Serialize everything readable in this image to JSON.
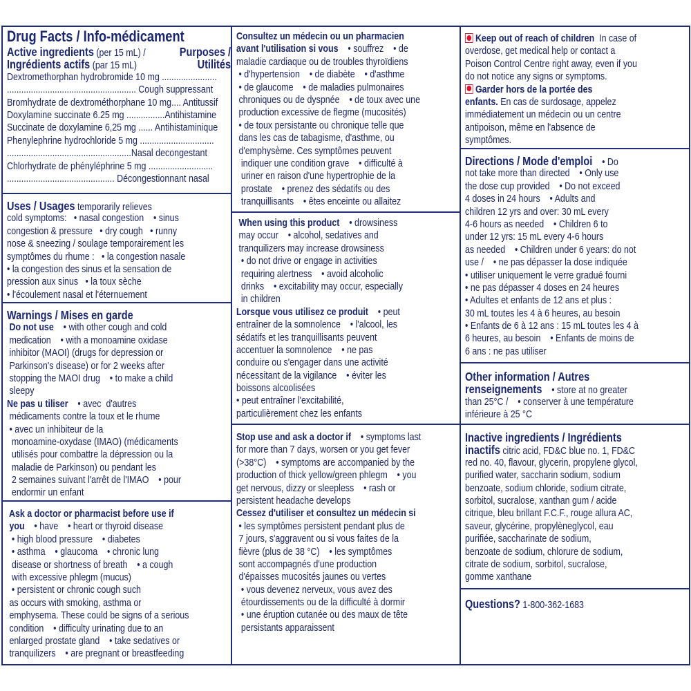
{
  "colors": {
    "text": "#1b2466",
    "border": "#1f2d78",
    "warning_icon": "#d4203a"
  },
  "sections": [
    {
      "id": "facts",
      "lines": [
        {
          "cls": "title",
          "l": [
            {
              "t": "Drug Facts / Info-médicament"
            }
          ]
        },
        {
          "l": [
            {
              "h": "Active ingredients"
            },
            " (per 15 mL) /"
          ],
          "r": [
            {
              "h": "Purposes /"
            }
          ]
        },
        {
          "l": [
            {
              "h": "Ingrédients actifs"
            },
            " (par 15 mL)"
          ],
          "r": [
            {
              "h": "Utilités"
            }
          ]
        },
        {
          "l": [
            "Dextromethorphan hydrobromide 10 mg ......................."
          ]
        },
        {
          "l": [
            "...................................................... Cough suppressant"
          ]
        },
        {
          "l": [
            "Bromhydrate de dextrométhorphane 10 mg.... Antitussif"
          ]
        },
        {
          "l": [
            "Doxylamine succinate 6.25 mg ................Antihistamine"
          ]
        },
        {
          "l": [
            "Succinate de doxylamine 6,25 mg ...... Antihistaminique"
          ]
        },
        {
          "l": [
            "Phenylephrine hydrochloride 5 mg ..............................."
          ]
        },
        {
          "l": [
            "....................................................Nasal decongestant"
          ]
        },
        {
          "l": [
            "Chlorhydrate de phényléphrine 5 mg ..........................."
          ]
        },
        {
          "l": [
            "............................................. Décongestionnant nasal"
          ]
        }
      ]
    },
    {
      "id": "uses",
      "lines": [
        {
          "l": [
            {
              "h": "Uses / Usages"
            },
            " temporarily relieves"
          ]
        },
        {
          "l": [
            "cold symptoms:   • nasal congestion    • sinus"
          ]
        },
        {
          "l": [
            "congestion & pressure   • dry cough   • runny"
          ]
        },
        {
          "l": [
            "nose & sneezing / soulage temporairement les"
          ]
        },
        {
          "l": [
            "symptômes du rhume :   • la congestion nasale"
          ]
        },
        {
          "l": [
            "• la congestion des sinus et la sensation de"
          ]
        },
        {
          "l": [
            "pression aux sinus   • la toux sèche"
          ]
        },
        {
          "l": [
            "• l'écoulement nasal et l'éternuement"
          ]
        }
      ]
    },
    {
      "id": "warn",
      "lines": [
        {
          "l": [
            {
              "h": "Warnings / Mises en garde"
            }
          ]
        },
        {
          "l": [
            {
              "b": " Do not use"
            },
            "    • with other cough and cold"
          ]
        },
        {
          "l": [
            " medication    • with a monoamine oxidase"
          ]
        },
        {
          "l": [
            " inhibitor (MAOI) (drugs for depression or"
          ]
        },
        {
          "l": [
            " Parkinson's disease) or for 2 weeks after"
          ]
        },
        {
          "l": [
            " stopping the MAOI drug    • to make a child"
          ]
        },
        {
          "l": [
            " sleepy"
          ]
        },
        {
          "l": [
            {
              "b": "Ne pas u tiliser"
            },
            "    • avec  d'autres"
          ]
        },
        {
          "l": [
            " médicaments contre la toux et le rhume"
          ]
        },
        {
          "l": [
            " • avec un inhibiteur de la"
          ]
        },
        {
          "l": [
            "  monoamine-oxydase (IMAO) (médicaments"
          ]
        },
        {
          "l": [
            "  utilisés pour combattre la dépression ou la"
          ]
        },
        {
          "l": [
            "  maladie de Parkinson) ou pendant les"
          ]
        },
        {
          "l": [
            "  2 semaines suivant l'arrêt de l'IMAO    • pour"
          ]
        },
        {
          "l": [
            "  endormir un enfant"
          ]
        }
      ]
    },
    {
      "id": "ask",
      "lines": [
        {
          "l": [
            {
              "b": " Ask a doctor or pharmacist before use if"
            }
          ]
        },
        {
          "l": [
            {
              "b": " you"
            },
            "    • have    • heart or thyroid disease"
          ]
        },
        {
          "l": [
            "  • high blood pressure    • diabetes"
          ]
        },
        {
          "l": [
            "  • asthma    • glaucoma    • chronic lung"
          ]
        },
        {
          "l": [
            "  disease or shortness of breath    • a cough"
          ]
        },
        {
          "l": [
            "  with excessive phlegm (mucus)"
          ]
        },
        {
          "l": [
            "  • persistent or chronic cough such"
          ]
        },
        {
          "l": [
            " as occurs with smoking, asthma or"
          ]
        },
        {
          "l": [
            " emphysema. These could be signs of a serious"
          ]
        },
        {
          "l": [
            " condition    • difficulty urinating due to an"
          ]
        },
        {
          "l": [
            " enlarged prostate gland    • take sedatives or"
          ]
        },
        {
          "l": [
            " tranquilizers    • are pregnant or breastfeeding"
          ]
        }
      ]
    },
    {
      "id": "consult",
      "lines": [
        {
          "l": [
            {
              "b": "Consultez un médecin ou un pharmacien"
            }
          ]
        },
        {
          "l": [
            {
              "b": "avant l'utilisation si vous"
            },
            "    • souffrez    • de"
          ]
        },
        {
          "l": [
            "maladie cardiaque ou de troubles thyroïdiens"
          ]
        },
        {
          "l": [
            " • d'hypertension    • de diabète    • d'asthme"
          ]
        },
        {
          "l": [
            " • de glaucome    • de maladies pulmonaires"
          ]
        },
        {
          "l": [
            " chroniques ou de dyspnée    • de toux avec une"
          ]
        },
        {
          "l": [
            " production excessive de flegme (mucosités)"
          ]
        },
        {
          "l": [
            " • de toux persistante ou chronique telle que"
          ]
        },
        {
          "l": [
            " dans les cas de tabagisme, d'asthme, ou"
          ]
        },
        {
          "l": [
            " d'emphysème. Ces symptômes peuvent"
          ]
        },
        {
          "l": [
            "  indiquer une condition grave    • difficulté à"
          ]
        },
        {
          "l": [
            "  uriner en raison d'une hypertrophie de la"
          ]
        },
        {
          "l": [
            "  prostate    • prenez des sédatifs ou des"
          ]
        },
        {
          "l": [
            "  tranquillisants    • êtes enceinte ou allaitez"
          ]
        }
      ]
    },
    {
      "id": "when",
      "lines": [
        {
          "l": [
            {
              "b": " When using this product"
            },
            "    • drowsiness"
          ]
        },
        {
          "l": [
            " may occur    • alcohol, sedatives and"
          ]
        },
        {
          "l": [
            " tranquilizers may increase drowsiness"
          ]
        },
        {
          "l": [
            "  • do not drive or engage in activities"
          ]
        },
        {
          "l": [
            "  requiring alertness    • avoid alcoholic"
          ]
        },
        {
          "l": [
            "  drinks    • excitability may occur, especially"
          ]
        },
        {
          "l": [
            "  in children"
          ]
        },
        {
          "l": [
            {
              "b": "Lorsque vous utilisez ce produit"
            },
            "    • peut"
          ]
        },
        {
          "l": [
            "entraîner de la somnolence    • l'alcool, les"
          ]
        },
        {
          "l": [
            "sédatifs et les tranquillisants peuvent"
          ]
        },
        {
          "l": [
            "accentuer la somnolence    • ne pas"
          ]
        },
        {
          "l": [
            "conduire ou s'engager dans une activité"
          ]
        },
        {
          "l": [
            "nécessitant de la vigilance    • éviter les"
          ]
        },
        {
          "l": [
            "boissons alcoolisées"
          ]
        },
        {
          "l": [
            "• peut entraîner l'excitabilité,"
          ]
        },
        {
          "l": [
            "particulièrement chez les enfants"
          ]
        }
      ]
    },
    {
      "id": "stop",
      "lines": [
        {
          "l": [
            {
              "b": "Stop use and ask a doctor if"
            },
            "    • symptoms last"
          ]
        },
        {
          "l": [
            "for more than 7 days, worsen or you get fever"
          ]
        },
        {
          "l": [
            "(>38°C)    • symptoms are accompanied by the"
          ]
        },
        {
          "l": [
            "production of thick yellow/green phlegm    • you"
          ]
        },
        {
          "l": [
            "get nervous, dizzy or sleepless    • rash or"
          ]
        },
        {
          "l": [
            "persistent headache develops"
          ]
        },
        {
          "l": [
            {
              "b": "Cessez d'utiliser et consultez un médecin si"
            }
          ]
        },
        {
          "l": [
            " • les symptômes persistent pendant plus de"
          ]
        },
        {
          "l": [
            " 7 jours, s'aggravent ou si vous faites de la"
          ]
        },
        {
          "l": [
            " fièvre (plus de 38 °C)    • les symptômes"
          ]
        },
        {
          "l": [
            " sont accompagnés d'une production"
          ]
        },
        {
          "l": [
            " d'épaisses mucosités jaunes ou vertes"
          ]
        },
        {
          "l": [
            "  • vous devenez nerveux, vous avez des"
          ]
        },
        {
          "l": [
            "  étourdissements ou de la difficulté à dormir"
          ]
        },
        {
          "l": [
            "  • une éruption cutanée ou des maux de tête"
          ]
        },
        {
          "l": [
            "  persistants apparaissent"
          ]
        }
      ]
    },
    {
      "id": "keep",
      "lines": [
        {
          "l": [
            {
              "icon": "stop-sign-icon"
            },
            {
              "b": "Keep out of reach of children"
            },
            "  In case of"
          ]
        },
        {
          "l": [
            "overdose, get medical help or contact a"
          ]
        },
        {
          "l": [
            "Poison Control Centre right away, even if you"
          ]
        },
        {
          "l": [
            "do not notice any signs or symptoms."
          ]
        },
        {
          "l": [
            {
              "icon": "stop-sign-icon"
            },
            {
              "b": "Garder hors de la portée des"
            }
          ]
        },
        {
          "l": [
            {
              "b": "enfants."
            },
            " En cas de surdosage, appelez"
          ]
        },
        {
          "l": [
            "immédiatement un médecin ou un centre"
          ]
        },
        {
          "l": [
            "antipoison, même en l'absence de"
          ]
        },
        {
          "l": [
            "symptômes."
          ]
        }
      ]
    },
    {
      "id": "dir",
      "lines": [
        {
          "l": [
            {
              "h": "Directions / Mode d'emploi"
            },
            "    • Do"
          ]
        },
        {
          "l": [
            "not take more than directed    • Only use"
          ]
        },
        {
          "l": [
            "the dose cup provided    • Do not exceed"
          ]
        },
        {
          "l": [
            "4 doses in 24 hours    • Adults and"
          ]
        },
        {
          "l": [
            "children 12 yrs and over: 30 mL every"
          ]
        },
        {
          "l": [
            "4-6 hours as needed    • Children 6 to"
          ]
        },
        {
          "l": [
            "under 12 yrs: 15 mL every 4-6 hours"
          ]
        },
        {
          "l": [
            "as needed    • Children under 6 years: do not"
          ]
        },
        {
          "l": [
            "use /    • ne pas dépasser la dose indiquée"
          ]
        },
        {
          "l": [
            "• utiliser uniquement le verre gradué fourni"
          ]
        },
        {
          "l": [
            "• ne pas dépasser 4 doses en 24 heures"
          ]
        },
        {
          "l": [
            "• Adultes et enfants de 12 ans et plus :"
          ]
        },
        {
          "l": [
            "30 mL toutes les 4 à 6 heures, au besoin"
          ]
        },
        {
          "l": [
            "• Enfants de 6 à 12 ans : 15 mL toutes les 4 à"
          ]
        },
        {
          "l": [
            "6 heures, au besoin    • Enfants de moins de"
          ]
        },
        {
          "l": [
            "6 ans : ne pas utiliser"
          ]
        }
      ]
    },
    {
      "id": "other",
      "lines": [
        {
          "l": [
            {
              "h": "Other information / Autres"
            }
          ]
        },
        {
          "l": [
            {
              "h": "renseignements"
            },
            "    • store at no greater"
          ]
        },
        {
          "l": [
            "than 25°C /    • conserver à une température"
          ]
        },
        {
          "l": [
            "inférieure à 25 °C"
          ]
        }
      ]
    },
    {
      "id": "inactive",
      "lines": [
        {
          "l": [
            {
              "h": "Inactive ingredients / Ingrédients"
            }
          ]
        },
        {
          "l": [
            {
              "h": "inactifs"
            },
            " citric acid, FD&C blue no. 1, FD&C"
          ]
        },
        {
          "l": [
            "red no. 40, flavour, glycerin, propylene glycol,"
          ]
        },
        {
          "l": [
            "purified water, saccharin sodium, sodium"
          ]
        },
        {
          "l": [
            "benzoate, sodium chloride, sodium citrate,"
          ]
        },
        {
          "l": [
            "sorbitol, sucralose, xanthan gum / acide"
          ]
        },
        {
          "l": [
            "citrique, bleu brillant F.C.F., rouge allura AC,"
          ]
        },
        {
          "l": [
            "saveur, glycérine, propylèneglycol, eau"
          ]
        },
        {
          "l": [
            "purifiée, saccharinate de sodium,"
          ]
        },
        {
          "l": [
            "benzoate de sodium, chlorure de sodium,"
          ]
        },
        {
          "l": [
            "citrate de sodium, sorbitol, sucralose,"
          ]
        },
        {
          "l": [
            "gomme xanthane"
          ]
        }
      ]
    },
    {
      "id": "questions",
      "lines": [
        {
          "l": [
            {
              "h": "Questions?"
            },
            " 1-800-362-1683"
          ]
        }
      ]
    }
  ]
}
